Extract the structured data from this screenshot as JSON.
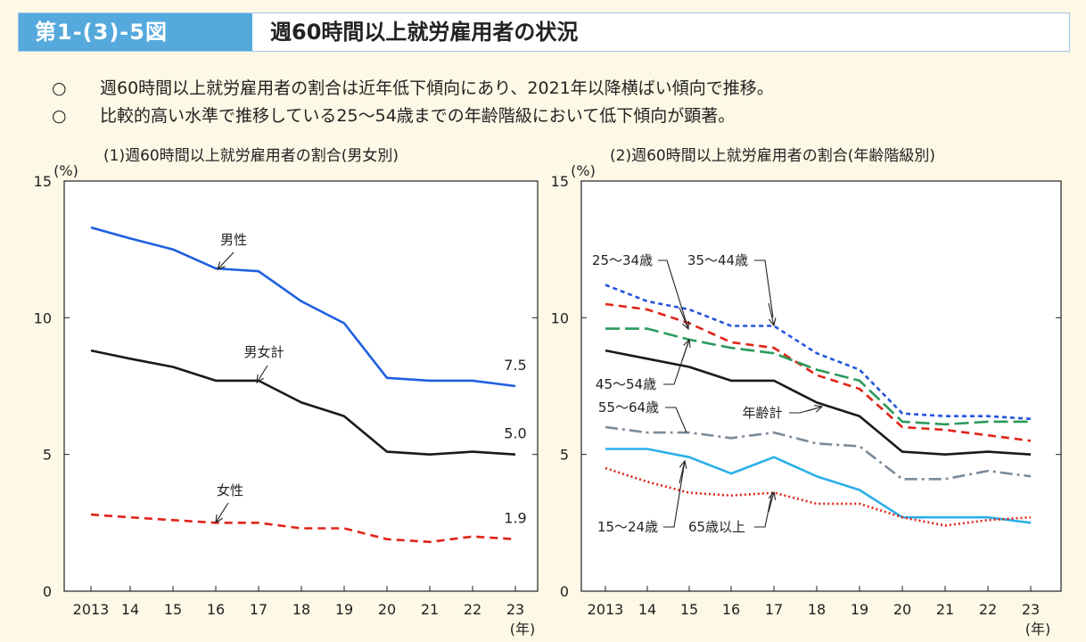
{
  "header": {
    "figure_number": "第1-(3)-5図",
    "title": "週60時間以上就労雇用者の状況"
  },
  "summary": [
    {
      "mark": "○",
      "text": "週60時間以上就労雇用者の割合は近年低下傾向にあり、2021年以降横ばい傾向で推移。"
    },
    {
      "mark": "○",
      "text": "比較的高い水準で推移している25〜54歳までの年齢階級において低下傾向が顕著。"
    }
  ],
  "colors": {
    "header_blue": "#55a9dc",
    "male": "#1f5fe0",
    "total": "#1a1a1a",
    "female": "#e02418",
    "age_25_34": "#e02418",
    "age_35_44": "#2255dd",
    "age_45_54": "#2a9a5a",
    "age_55_64": "#7a8a99",
    "age_15_24": "#2ab0e8",
    "age_65plus": "#e02418"
  },
  "chart_data": [
    {
      "type": "line",
      "title": "(1)週60時間以上就労雇用者の割合(男女別)",
      "ylabel": "(%)",
      "xlabel": "(年)",
      "ylim": [
        0,
        15
      ],
      "yticks": [
        "0",
        "5",
        "10",
        "15"
      ],
      "categories": [
        "2013",
        "14",
        "15",
        "16",
        "17",
        "18",
        "19",
        "20",
        "21",
        "22",
        "23"
      ],
      "series": [
        {
          "name": "男性",
          "style": "solid",
          "color": "#1f5fe0",
          "values": [
            13.3,
            12.9,
            12.5,
            11.8,
            11.7,
            10.6,
            9.8,
            7.8,
            7.7,
            7.7,
            7.5
          ],
          "end_label": "7.5"
        },
        {
          "name": "男女計",
          "style": "solid",
          "color": "#1a1a1a",
          "values": [
            8.8,
            8.5,
            8.2,
            7.7,
            7.7,
            6.9,
            6.4,
            5.1,
            5.0,
            5.1,
            5.0
          ],
          "end_label": "5.0"
        },
        {
          "name": "女性",
          "style": "dashed",
          "color": "#e02418",
          "values": [
            2.8,
            2.7,
            2.6,
            2.5,
            2.5,
            2.3,
            2.3,
            1.9,
            1.8,
            2.0,
            1.9
          ],
          "end_label": "1.9"
        }
      ]
    },
    {
      "type": "line",
      "title": "(2)週60時間以上就労雇用者の割合(年齢階級別)",
      "ylabel": "(%)",
      "xlabel": "(年)",
      "ylim": [
        0,
        15
      ],
      "yticks": [
        "0",
        "5",
        "10",
        "15"
      ],
      "categories": [
        "2013",
        "14",
        "15",
        "16",
        "17",
        "18",
        "19",
        "20",
        "21",
        "22",
        "23"
      ],
      "series": [
        {
          "name": "35〜44歳",
          "style": "dotted-short",
          "color": "#2255dd",
          "values": [
            11.2,
            10.6,
            10.3,
            9.7,
            9.7,
            8.7,
            8.1,
            6.5,
            6.4,
            6.4,
            6.3
          ]
        },
        {
          "name": "25〜34歳",
          "style": "dashed",
          "color": "#e02418",
          "values": [
            10.5,
            10.3,
            9.8,
            9.1,
            8.9,
            7.9,
            7.4,
            6.0,
            5.9,
            5.7,
            5.5
          ]
        },
        {
          "name": "45〜54歳",
          "style": "longdash",
          "color": "#2a9a5a",
          "values": [
            9.6,
            9.6,
            9.2,
            8.9,
            8.7,
            8.1,
            7.7,
            6.2,
            6.1,
            6.2,
            6.2
          ]
        },
        {
          "name": "年齢計",
          "style": "solid",
          "color": "#1a1a1a",
          "values": [
            8.8,
            8.5,
            8.2,
            7.7,
            7.7,
            6.9,
            6.4,
            5.1,
            5.0,
            5.1,
            5.0
          ]
        },
        {
          "name": "55〜64歳",
          "style": "dashdot",
          "color": "#7a8a99",
          "values": [
            6.0,
            5.8,
            5.8,
            5.6,
            5.8,
            5.4,
            5.3,
            4.1,
            4.1,
            4.4,
            4.2
          ]
        },
        {
          "name": "15〜24歳",
          "style": "solid",
          "color": "#2ab0e8",
          "values": [
            5.2,
            5.2,
            4.9,
            4.3,
            4.9,
            4.2,
            3.7,
            2.7,
            2.7,
            2.7,
            2.5
          ]
        },
        {
          "name": "65歳以上",
          "style": "dotted",
          "color": "#e02418",
          "values": [
            4.5,
            4.0,
            3.6,
            3.5,
            3.6,
            3.2,
            3.2,
            2.7,
            2.4,
            2.6,
            2.7
          ]
        }
      ]
    }
  ]
}
